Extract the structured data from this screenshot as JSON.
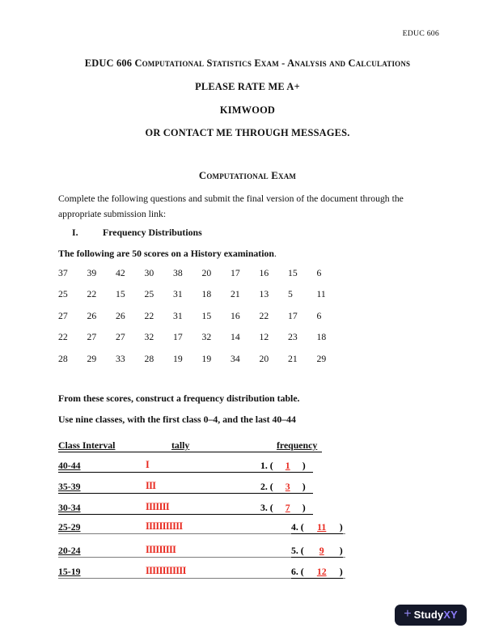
{
  "colors": {
    "tally_red": "#e8281e",
    "row_line_gray": "#7d7d7d",
    "logo_bg": "#141829",
    "logo_accent": "#8b7cf8"
  },
  "header": {
    "running_head": "EDUC 606"
  },
  "titles": {
    "main": "EDUC 606 Computational Statistics Exam - Analysis and Calculations",
    "line_rate": "PLEASE RATE ME A+",
    "line_name": "KIMWOOD",
    "line_contact": "OR CONTACT ME THROUGH MESSAGES.",
    "section": "Computational Exam"
  },
  "body": {
    "intro": "Complete the following questions and submit the final version of the document through the appropriate submission link:",
    "part_numeral": "I.",
    "part_title": "Frequency Distributions",
    "scores_lead": "The following are 50 scores on a History examination",
    "scores_lead_period": ".",
    "instruction_1": "From these scores, construct a frequency distribution table.",
    "instruction_2": "Use nine classes, with the first class 0–4, and the last 40–44"
  },
  "scores": {
    "rows": [
      [
        37,
        39,
        42,
        30,
        38,
        20,
        17,
        16,
        15,
        6
      ],
      [
        25,
        22,
        15,
        25,
        31,
        18,
        21,
        13,
        5,
        11
      ],
      [
        27,
        26,
        26,
        22,
        31,
        15,
        16,
        22,
        17,
        6
      ],
      [
        22,
        27,
        27,
        32,
        17,
        32,
        14,
        12,
        23,
        18
      ],
      [
        28,
        29,
        33,
        28,
        19,
        19,
        34,
        20,
        21,
        29
      ]
    ]
  },
  "freq_table": {
    "col_interval": "Class Interval",
    "col_tally": "tally",
    "col_frequency": "frequency",
    "rows": [
      {
        "interval": "40-44",
        "tally": "I",
        "tally_count": 1,
        "label": "1. (",
        "value": "1",
        "close": ")"
      },
      {
        "interval": "35-39",
        "tally": "III",
        "tally_count": 3,
        "label": "2. (",
        "value": "3",
        "close": ")"
      },
      {
        "interval": "30-34",
        "tally": "IIIIIII",
        "tally_count": 7,
        "label": "3. (",
        "value": "7",
        "close": ")"
      },
      {
        "interval": "25-29",
        "tally": "IIIIIIIIIII",
        "tally_count": 11,
        "label": "4. (",
        "value": "11",
        "close": ")"
      },
      {
        "interval": "20-24",
        "tally": "IIIIIIIII",
        "tally_count": 9,
        "label": "5. (",
        "value": "9",
        "close": ")"
      },
      {
        "interval": "15-19",
        "tally": "IIIIIIIIIIII",
        "tally_count": 12,
        "label": "6. (",
        "value": "12",
        "close": ")"
      }
    ]
  },
  "branding": {
    "plus": "+",
    "name_primary": "Study",
    "name_accent": "XY"
  }
}
